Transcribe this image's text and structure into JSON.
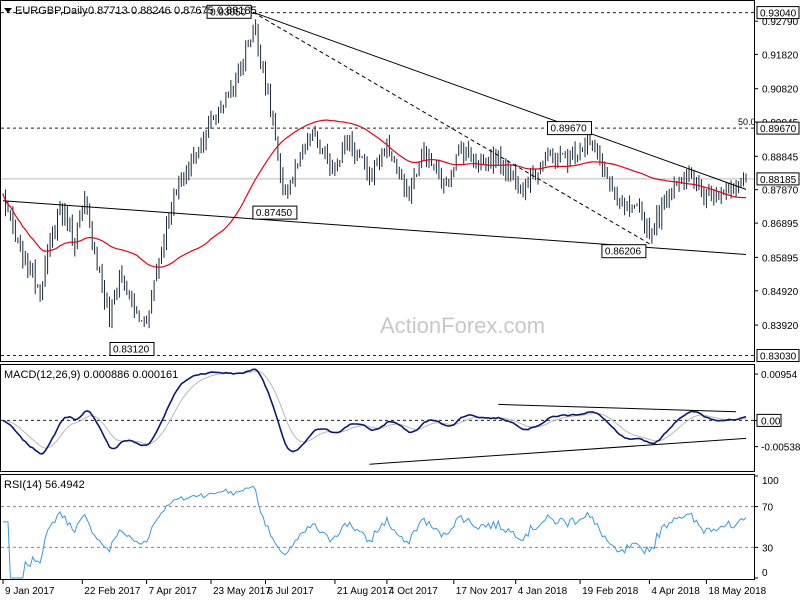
{
  "chart_data": [
    {
      "panel": "price",
      "type": "candlestick",
      "title": "EURGBP,Daily",
      "ohlc": [
        "0.87713",
        "0.88246",
        "0.87675",
        "0.88185"
      ],
      "watermark": "ActionForex.com",
      "ylim": [
        0.829,
        0.9335
      ],
      "y_ticks": [
        "0.92790",
        "0.91820",
        "0.90820",
        "0.89845",
        "0.88845",
        "0.87870",
        "0.86895",
        "0.85895",
        "0.84920",
        "0.83920"
      ],
      "right_labels": [
        {
          "text": "0.93040",
          "value": 0.9304,
          "style": "boxed"
        },
        {
          "text": "0.89670",
          "value": 0.8967,
          "style": "boxed"
        },
        {
          "text": "0.88185",
          "value": 0.88185,
          "style": "boxed"
        },
        {
          "text": "0.83030",
          "value": 0.8303,
          "style": "boxed"
        }
      ],
      "level_lines": [
        {
          "value": 0.9304,
          "style": "dotted"
        },
        {
          "value": 0.8967,
          "style": "dotted",
          "label": "50.0"
        },
        {
          "value": 0.8303,
          "style": "dotted"
        },
        {
          "value": 0.88185,
          "style": "solid-gray"
        }
      ],
      "pivot_labels": [
        {
          "text": "0.93050",
          "t": 101,
          "value": 0.9305
        },
        {
          "text": "0.89670",
          "t": 236,
          "value": 0.8967
        },
        {
          "text": "0.87450",
          "t": 113,
          "value": 0.8745
        },
        {
          "text": "0.86206",
          "t": 262,
          "value": 0.86206
        },
        {
          "text": "0.83120",
          "t": 44,
          "value": 0.8312
        }
      ],
      "trendlines": [
        {
          "from": [
            101,
            0.9305
          ],
          "to": [
            300,
            0.8788
          ],
          "style": "solid"
        },
        {
          "from": [
            101,
            0.9305
          ],
          "to": [
            262,
            0.8625
          ],
          "style": "dashed"
        },
        {
          "from": [
            0,
            0.8755
          ],
          "to": [
            300,
            0.8598
          ],
          "style": "solid"
        }
      ],
      "sma_period": 55,
      "trend_waypoints": [
        [
          0,
          0.877
        ],
        [
          6,
          0.862
        ],
        [
          15,
          0.85
        ],
        [
          23,
          0.874
        ],
        [
          29,
          0.864
        ],
        [
          33,
          0.875
        ],
        [
          43,
          0.84
        ],
        [
          47,
          0.855
        ],
        [
          55,
          0.84
        ],
        [
          58,
          0.842
        ],
        [
          68,
          0.875
        ],
        [
          80,
          0.893
        ],
        [
          95,
          0.912
        ],
        [
          101,
          0.926
        ],
        [
          104,
          0.918
        ],
        [
          109,
          0.898
        ],
        [
          113,
          0.877
        ],
        [
          118,
          0.884
        ],
        [
          125,
          0.895
        ],
        [
          132,
          0.885
        ],
        [
          140,
          0.893
        ],
        [
          148,
          0.882
        ],
        [
          155,
          0.892
        ],
        [
          163,
          0.877
        ],
        [
          170,
          0.89
        ],
        [
          178,
          0.88
        ],
        [
          185,
          0.891
        ],
        [
          192,
          0.887
        ],
        [
          200,
          0.888
        ],
        [
          210,
          0.88
        ],
        [
          220,
          0.888
        ],
        [
          228,
          0.888
        ],
        [
          236,
          0.893
        ],
        [
          242,
          0.886
        ],
        [
          248,
          0.874
        ],
        [
          256,
          0.872
        ],
        [
          262,
          0.866
        ],
        [
          266,
          0.873
        ],
        [
          272,
          0.882
        ],
        [
          278,
          0.882
        ],
        [
          283,
          0.877
        ],
        [
          290,
          0.879
        ],
        [
          296,
          0.877
        ],
        [
          300,
          0.8818
        ]
      ]
    },
    {
      "panel": "macd",
      "type": "line",
      "title": "MACD(12,26,9) 0.000886 0.000161",
      "ylim": [
        -0.0102,
        0.0112
      ],
      "y_ticks": [
        {
          "text": "0.00954",
          "value": 0.00954
        },
        {
          "text": "0.00",
          "value": 0.0
        },
        {
          "text": "-0.00538",
          "value": -0.00538
        }
      ],
      "zero_box": "0.00",
      "trendlines": [
        {
          "from": [
            200,
            0.0033
          ],
          "to": [
            296,
            0.0018
          ]
        },
        {
          "from": [
            148,
            -0.009
          ],
          "to": [
            300,
            -0.0037
          ]
        }
      ]
    },
    {
      "panel": "rsi",
      "type": "line",
      "title": "RSI(14) 56.4942",
      "ylim": [
        0,
        100
      ],
      "y_ticks": [
        {
          "text": "100",
          "value": 100
        },
        {
          "text": "70",
          "value": 70
        },
        {
          "text": "30",
          "value": 30
        },
        {
          "text": "0",
          "value": 0
        }
      ],
      "levels": [
        70,
        30
      ]
    },
    {
      "panel": "x-axis",
      "x_ticks": [
        {
          "text": "9 Jan 2017",
          "t": 0
        },
        {
          "text": "22 Feb 2017",
          "t": 32
        },
        {
          "text": "7 Apr 2017",
          "t": 58
        },
        {
          "text": "23 May 2017",
          "t": 84
        },
        {
          "text": "6 Jul 2017",
          "t": 106
        },
        {
          "text": "21 Aug 2017",
          "t": 134
        },
        {
          "text": "4 Oct 2017",
          "t": 155
        },
        {
          "text": "17 Nov 2017",
          "t": 182
        },
        {
          "text": "4 Jan 2018",
          "t": 207
        },
        {
          "text": "19 Feb 2018",
          "t": 233
        },
        {
          "text": "4 Apr 2018",
          "t": 261
        },
        {
          "text": "18 May 2018",
          "t": 284
        }
      ]
    }
  ],
  "colors": {
    "candle": "#1a2a3a",
    "sma": "#e8001c",
    "macd": "#0b1a6e",
    "signal": "#b8b8b8",
    "rsi": "#3a9ad9",
    "grid": "#000000"
  }
}
